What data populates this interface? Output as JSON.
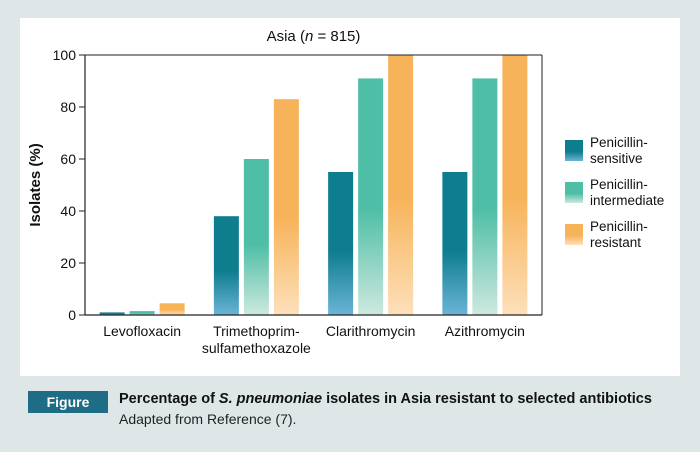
{
  "chart_data": {
    "type": "bar",
    "title_prefix": "Asia (",
    "title_italic": "n",
    "title_suffix": " = 815)",
    "xlabel": "",
    "ylabel": "Isolates (%)",
    "ylim": [
      0,
      100
    ],
    "yticks": [
      "0",
      "20",
      "40",
      "60",
      "80",
      "100"
    ],
    "categories": [
      [
        "Levofloxacin"
      ],
      [
        "Trimethoprim-",
        "sulfamethoxazole"
      ],
      [
        "Clarithromycin"
      ],
      [
        "Azithromycin"
      ]
    ],
    "series": [
      {
        "name_lines": [
          "Penicillin-",
          "sensitive"
        ],
        "color_top": "#0e7d8e",
        "color_bottom": "#6bb4d6",
        "values": [
          1,
          38,
          55,
          55
        ]
      },
      {
        "name_lines": [
          "Penicillin-",
          "intermediate"
        ],
        "color_top": "#4fbea6",
        "color_bottom": "#cde9df",
        "values": [
          1.5,
          60,
          91,
          91
        ]
      },
      {
        "name_lines": [
          "Penicillin-",
          "resistant"
        ],
        "color_top": "#f7b35a",
        "color_bottom": "#fde0ba",
        "values": [
          4.5,
          83,
          100,
          100
        ]
      }
    ],
    "legend_position": "right",
    "grid": false
  },
  "caption": {
    "badge": "Figure",
    "title_prefix": "Percentage of ",
    "title_italic": "S. pneumoniae",
    "title_suffix": " isolates in Asia resistant to selected antibiotics",
    "subtitle": "Adapted from Reference (7)."
  }
}
